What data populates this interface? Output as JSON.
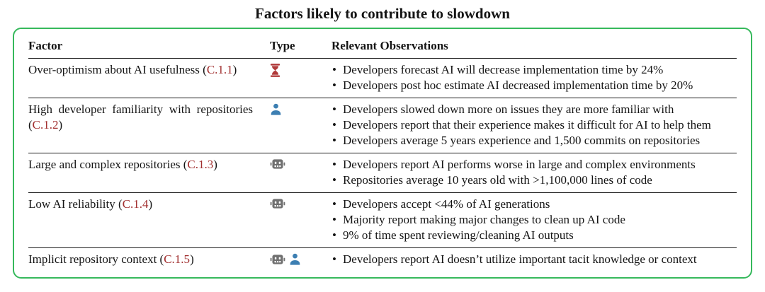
{
  "title": "Factors likely to contribute to slowdown",
  "colors": {
    "border_green": "#36b95c",
    "ref_red": "#a12f2f",
    "hourglass_red": "#b03a3a",
    "user_blue": "#3d7fb2",
    "robot_gray": "#707070"
  },
  "table": {
    "headers": {
      "factor": "Factor",
      "type": "Type",
      "observations": "Relevant Observations"
    },
    "punctuation": {
      "open_paren": "(",
      "close_paren": ")"
    },
    "rows": [
      {
        "factor": "Over-optimism about AI usefulness",
        "ref": "C.1.1",
        "icons": [
          "hourglass"
        ],
        "observations": [
          "Developers forecast AI will decrease implementation time by 24%",
          "Developers post hoc estimate AI decreased implementation time by 20%"
        ]
      },
      {
        "factor": "High developer familiarity with repositories",
        "ref": "C.1.2",
        "icons": [
          "user"
        ],
        "observations": [
          "Developers slowed down more on issues they are more familiar with",
          "Developers report that their experience makes it difficult for AI to help them",
          "Developers average 5 years experience and 1,500 commits on repositories"
        ]
      },
      {
        "factor": "Large and complex repositories",
        "ref": "C.1.3",
        "icons": [
          "robot"
        ],
        "observations": [
          "Developers report AI performs worse in large and complex environments",
          "Repositories average 10 years old with >1,100,000 lines of code"
        ]
      },
      {
        "factor": "Low AI reliability",
        "ref": "C.1.4",
        "icons": [
          "robot"
        ],
        "observations": [
          "Developers accept <44% of AI generations",
          "Majority report making major changes to clean up AI code",
          "9% of time spent reviewing/cleaning AI outputs"
        ]
      },
      {
        "factor": "Implicit repository context",
        "ref": "C.1.5",
        "icons": [
          "robot",
          "user"
        ],
        "observations": [
          "Developers report AI doesn’t utilize important tacit knowledge or context"
        ]
      }
    ]
  }
}
